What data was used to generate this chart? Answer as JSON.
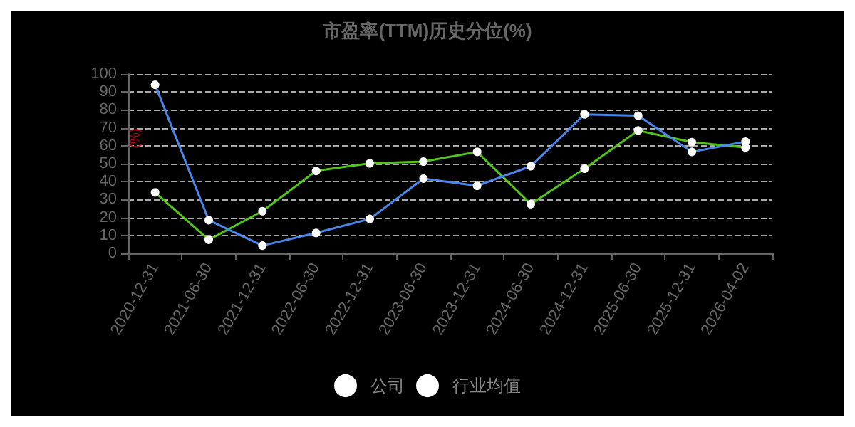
{
  "chart_data": {
    "type": "line",
    "title": "市盈率(TTM)历史分位(%)",
    "ylabel": "(%)",
    "categories": [
      "2020-12-31",
      "2021-06-30",
      "2021-12-31",
      "2022-06-30",
      "2022-12-31",
      "2023-06-30",
      "2023-12-31",
      "2024-06-30",
      "2024-12-31",
      "2025-06-30",
      "2025-12-31",
      "2026-04-02"
    ],
    "series": [
      {
        "name": "公司",
        "color": "#52c41a",
        "values": [
          34,
          7.6,
          23.5,
          46,
          50.2,
          51.2,
          56.6,
          27.5,
          47.2,
          68.5,
          62,
          59
        ]
      },
      {
        "name": "行业均值",
        "color": "#4a86e8",
        "values": [
          94,
          18.5,
          4.3,
          11.4,
          19.2,
          41.7,
          37.7,
          48.6,
          77.5,
          76.8,
          56.6,
          62.3
        ]
      }
    ],
    "ylim": [
      0,
      100
    ],
    "yticks": [
      0,
      10,
      20,
      30,
      40,
      50,
      60,
      70,
      80,
      90,
      100
    ],
    "grid": "y",
    "legend": "bottom",
    "marker": "circle",
    "line_style": "solid"
  }
}
